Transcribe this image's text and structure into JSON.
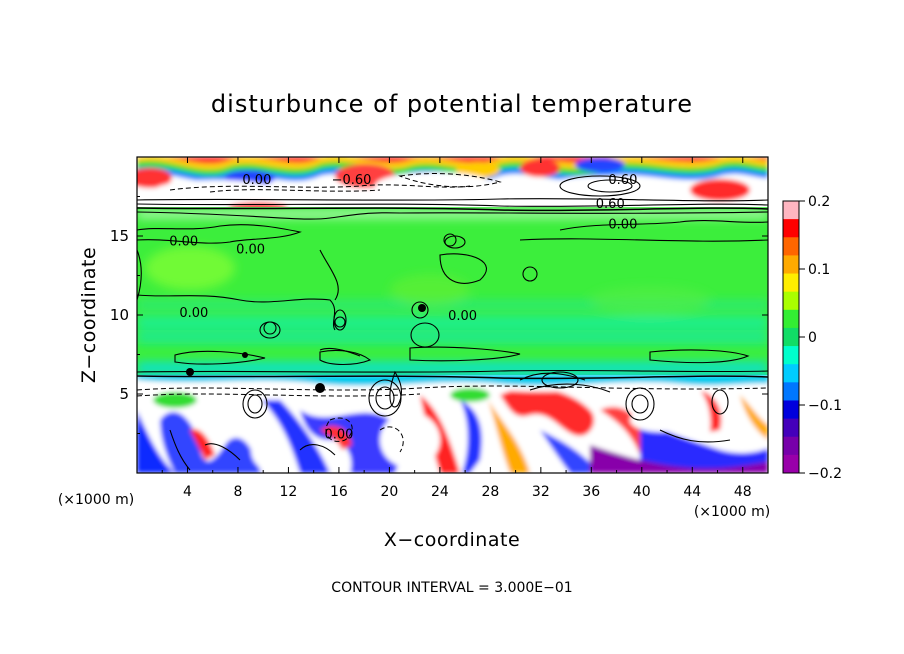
{
  "chart_data": {
    "type": "heatmap",
    "title": "disturbunce of potential temperature",
    "xlabel": "X−coordinate",
    "ylabel": "Z−coordinate",
    "x_unit_label": "(×1000 m)",
    "z_unit_label": "(×1000 m)",
    "xlim": [
      0,
      50
    ],
    "ylim": [
      0,
      20
    ],
    "x_ticks": [
      4,
      8,
      12,
      16,
      20,
      24,
      28,
      32,
      36,
      40,
      44,
      48
    ],
    "y_ticks": [
      5,
      10,
      15
    ],
    "colorbar": {
      "range": [
        -0.2,
        0.2
      ],
      "ticks": [
        0.2,
        0.1,
        0,
        -0.1,
        -0.2
      ],
      "tick_labels": [
        "0.2",
        "0.1",
        "0",
        "−0.1",
        "−0.2"
      ],
      "colors": [
        "#ffb6c1",
        "#ff0000",
        "#ff6600",
        "#ffaa00",
        "#ffee00",
        "#aaff00",
        "#33ee33",
        "#11dd66",
        "#00ffcc",
        "#00ccff",
        "#0077ff",
        "#0000dd",
        "#4400bb",
        "#7700aa",
        "#9900aa"
      ]
    },
    "contour_labels": [
      {
        "text": "0.00",
        "x": 9.5,
        "z": 18.6
      },
      {
        "text": "−0.60",
        "x": 17.0,
        "z": 18.6
      },
      {
        "text": "0.60",
        "x": 38.5,
        "z": 18.6
      },
      {
        "text": "0.60",
        "x": 37.5,
        "z": 17.1
      },
      {
        "text": "0.00",
        "x": 38.5,
        "z": 15.8
      },
      {
        "text": "0.00",
        "x": 3.7,
        "z": 14.7
      },
      {
        "text": "0.00",
        "x": 9.0,
        "z": 14.2
      },
      {
        "text": "0.00",
        "x": 4.5,
        "z": 10.2
      },
      {
        "text": "0.00",
        "x": 25.8,
        "z": 10.0
      },
      {
        "text": "0.00",
        "x": 16.0,
        "z": 2.5
      }
    ],
    "footnote": "CONTOUR INTERVAL = 3.000E−01"
  },
  "colors": {
    "top_band": "#ffffff",
    "mid_background": "#33ee33",
    "lower_band": "#ffffff"
  }
}
